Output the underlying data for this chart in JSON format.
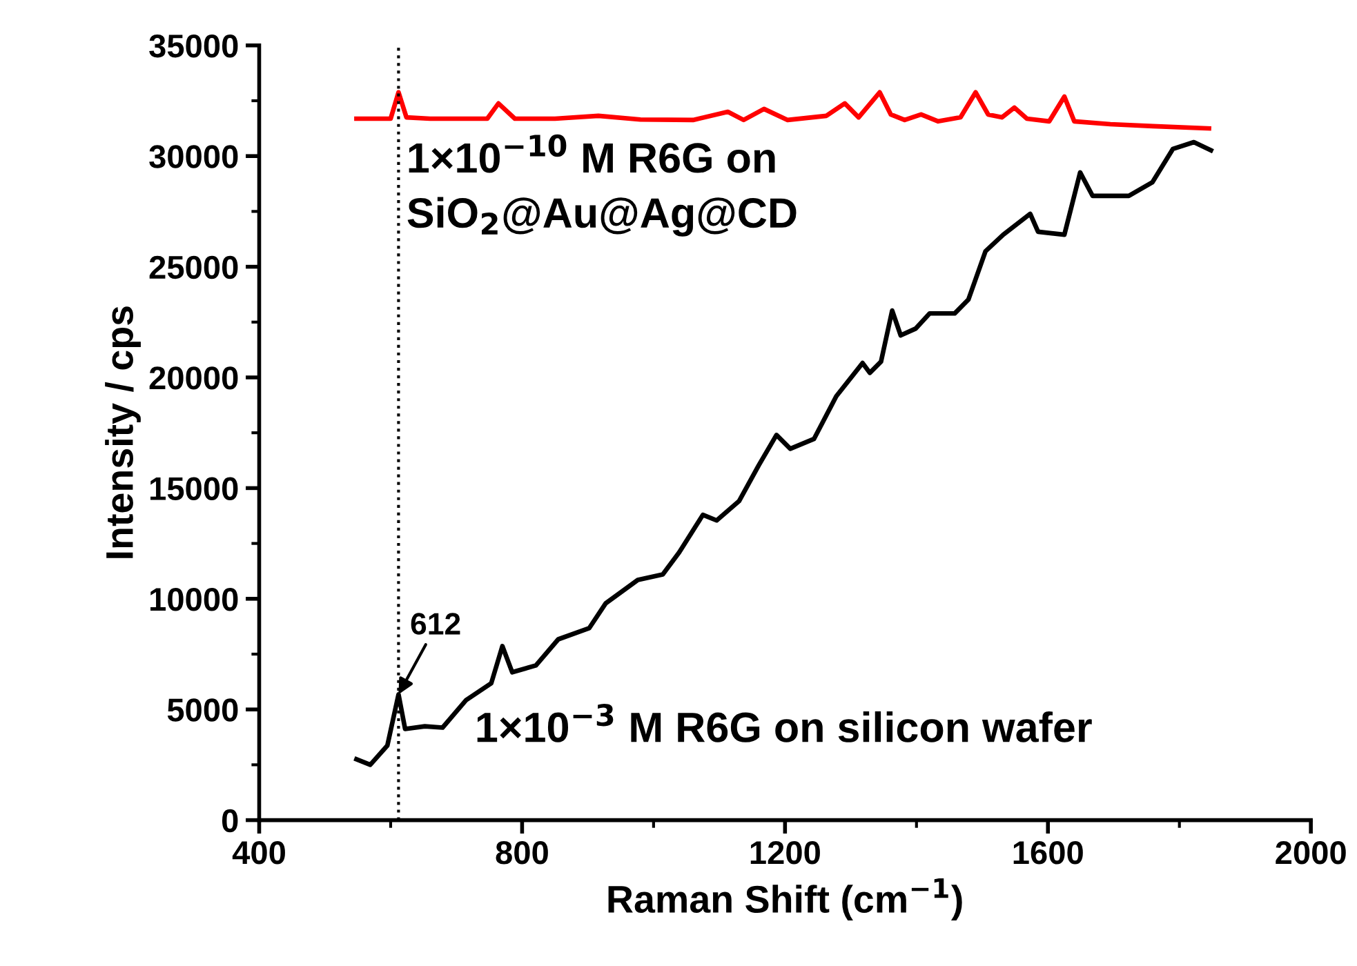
{
  "chart_data": {
    "type": "line",
    "xlabel": "Raman Shift (cm$^{−1}$)",
    "ylabel": "Intensity / cps",
    "xlim": [
      400,
      2000
    ],
    "xticks": [
      400,
      800,
      1200,
      1600,
      2000
    ],
    "ylim": [
      0,
      35000
    ],
    "yticks": [
      0,
      5000,
      10000,
      15000,
      20000,
      25000,
      30000,
      35000
    ],
    "grid": false,
    "legend": false,
    "marker": "none",
    "line_style": "solid",
    "series": [
      {
        "name": "1×10$^{−10}$ M R6G on\nSiO$_{2}$@Au@Ag@CD",
        "color": "#ff0000",
        "x": [
          548,
          600,
          612,
          624,
          660,
          747,
          764,
          789,
          850,
          916,
          980,
          1060,
          1113,
          1137,
          1168,
          1204,
          1263,
          1291,
          1312,
          1344,
          1361,
          1382,
          1407,
          1433,
          1467,
          1490,
          1509,
          1530,
          1549,
          1568,
          1602,
          1625,
          1640,
          1695,
          1760,
          1845
        ],
        "values": [
          31690,
          31690,
          32880,
          31750,
          31690,
          31690,
          32380,
          31690,
          31690,
          31820,
          31650,
          31630,
          32000,
          31630,
          32130,
          31630,
          31820,
          32380,
          31750,
          32880,
          31880,
          31630,
          31880,
          31570,
          31750,
          32880,
          31880,
          31750,
          32190,
          31690,
          31570,
          32690,
          31570,
          31440,
          31350,
          31250
        ]
      },
      {
        "name": "1×10$^{−3}$ M R6G on silicon wafer",
        "color": "#000000",
        "x": [
          548,
          569,
          595,
          612,
          622,
          652,
          679,
          715,
          753,
          770,
          785,
          821,
          855,
          902,
          927,
          976,
          1014,
          1039,
          1075,
          1096,
          1130,
          1160,
          1187,
          1208,
          1244,
          1278,
          1318,
          1329,
          1346,
          1363,
          1376,
          1399,
          1420,
          1458,
          1479,
          1505,
          1532,
          1573,
          1585,
          1625,
          1649,
          1668,
          1723,
          1759,
          1790,
          1822,
          1848
        ],
        "values": [
          2750,
          2500,
          3370,
          5680,
          4120,
          4240,
          4180,
          5430,
          6180,
          7860,
          6680,
          6990,
          8170,
          8670,
          9790,
          10850,
          11100,
          12100,
          13790,
          13540,
          14410,
          16030,
          17400,
          16780,
          17220,
          19150,
          20650,
          20210,
          20710,
          23020,
          21900,
          22210,
          22890,
          22890,
          23520,
          25700,
          26450,
          27390,
          26580,
          26450,
          29260,
          28200,
          28200,
          28820,
          30320,
          30630,
          30260
        ]
      }
    ],
    "ref_lines": [
      {
        "axis": "x",
        "value": 612,
        "color": "#000000",
        "line_style": "dotted"
      }
    ],
    "annotations": [
      {
        "text": "612",
        "x": 612,
        "y": 5680
      }
    ]
  }
}
